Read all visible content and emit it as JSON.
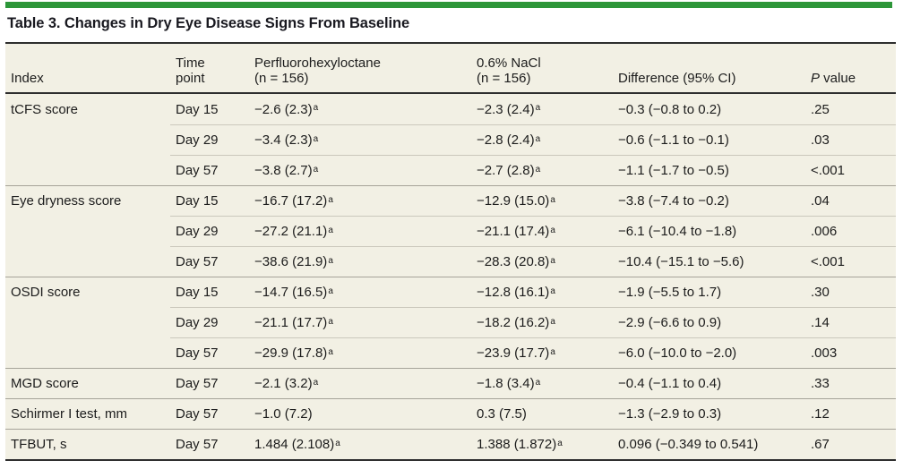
{
  "title": "Table 3. Changes in Dry Eye Disease Signs From Baseline",
  "colors": {
    "accent_green": "#2d9639",
    "table_background": "#f2f0e4",
    "rule_dark": "#2e2e2e",
    "group_divider": "#a6a399",
    "row_divider": "#cbc8bc",
    "text": "#1c1c1c"
  },
  "header": {
    "index": "Index",
    "time": {
      "l1": "Time",
      "l2": "point"
    },
    "pfho": {
      "l1": "Perfluorohexyloctane",
      "l2": "(n = 156)"
    },
    "nacl": {
      "l1": "0.6% NaCl",
      "l2": "(n = 156)"
    },
    "diff": "Difference (95% CI)",
    "pvalue": {
      "italic": "P",
      "rest": " value"
    }
  },
  "footnote_marker": "a",
  "groups": [
    {
      "index": "tCFS score",
      "rows": [
        {
          "time": "Day 15",
          "pfho": "−2.6 (2.3)",
          "pfho_sup": "a",
          "nacl": "−2.3 (2.4)",
          "nacl_sup": "a",
          "diff": "−0.3 (−0.8 to 0.2)",
          "p": ".25"
        },
        {
          "time": "Day 29",
          "pfho": "−3.4 (2.3)",
          "pfho_sup": "a",
          "nacl": "−2.8 (2.4)",
          "nacl_sup": "a",
          "diff": "−0.6 (−1.1 to −0.1)",
          "p": ".03"
        },
        {
          "time": "Day 57",
          "pfho": "−3.8 (2.7)",
          "pfho_sup": "a",
          "nacl": "−2.7 (2.8)",
          "nacl_sup": "a",
          "diff": "−1.1 (−1.7 to −0.5)",
          "p": "<.001"
        }
      ]
    },
    {
      "index": "Eye dryness score",
      "rows": [
        {
          "time": "Day 15",
          "pfho": "−16.7 (17.2)",
          "pfho_sup": "a",
          "nacl": "−12.9 (15.0)",
          "nacl_sup": "a",
          "diff": "−3.8 (−7.4 to −0.2)",
          "p": ".04"
        },
        {
          "time": "Day 29",
          "pfho": "−27.2 (21.1)",
          "pfho_sup": "a",
          "nacl": "−21.1 (17.4)",
          "nacl_sup": "a",
          "diff": "−6.1 (−10.4 to −1.8)",
          "p": ".006"
        },
        {
          "time": "Day 57",
          "pfho": "−38.6 (21.9)",
          "pfho_sup": "a",
          "nacl": "−28.3 (20.8)",
          "nacl_sup": "a",
          "diff": "−10.4 (−15.1 to −5.6)",
          "p": "<.001"
        }
      ]
    },
    {
      "index": "OSDI score",
      "rows": [
        {
          "time": "Day 15",
          "pfho": "−14.7 (16.5)",
          "pfho_sup": "a",
          "nacl": "−12.8 (16.1)",
          "nacl_sup": "a",
          "diff": "−1.9 (−5.5 to 1.7)",
          "p": ".30"
        },
        {
          "time": "Day 29",
          "pfho": "−21.1 (17.7)",
          "pfho_sup": "a",
          "nacl": "−18.2 (16.2)",
          "nacl_sup": "a",
          "diff": "−2.9 (−6.6 to 0.9)",
          "p": ".14"
        },
        {
          "time": "Day 57",
          "pfho": "−29.9 (17.8)",
          "pfho_sup": "a",
          "nacl": "−23.9 (17.7)",
          "nacl_sup": "a",
          "diff": "−6.0 (−10.0 to −2.0)",
          "p": ".003"
        }
      ]
    },
    {
      "index": "MGD score",
      "rows": [
        {
          "time": "Day 57",
          "pfho": "−2.1 (3.2)",
          "pfho_sup": "a",
          "nacl": "−1.8 (3.4)",
          "nacl_sup": "a",
          "diff": "−0.4 (−1.1 to 0.4)",
          "p": ".33"
        }
      ]
    },
    {
      "index": "Schirmer I test, mm",
      "rows": [
        {
          "time": "Day 57",
          "pfho": "−1.0 (7.2)",
          "pfho_sup": "",
          "nacl": "0.3 (7.5)",
          "nacl_sup": "",
          "diff": "−1.3 (−2.9 to 0.3)",
          "p": ".12"
        }
      ]
    },
    {
      "index": "TFBUT, s",
      "rows": [
        {
          "time": "Day 57",
          "pfho": "1.484 (2.108)",
          "pfho_sup": "a",
          "nacl": "1.388 (1.872)",
          "nacl_sup": "a",
          "diff": "0.096 (−0.349 to 0.541)",
          "p": ".67"
        }
      ]
    }
  ]
}
